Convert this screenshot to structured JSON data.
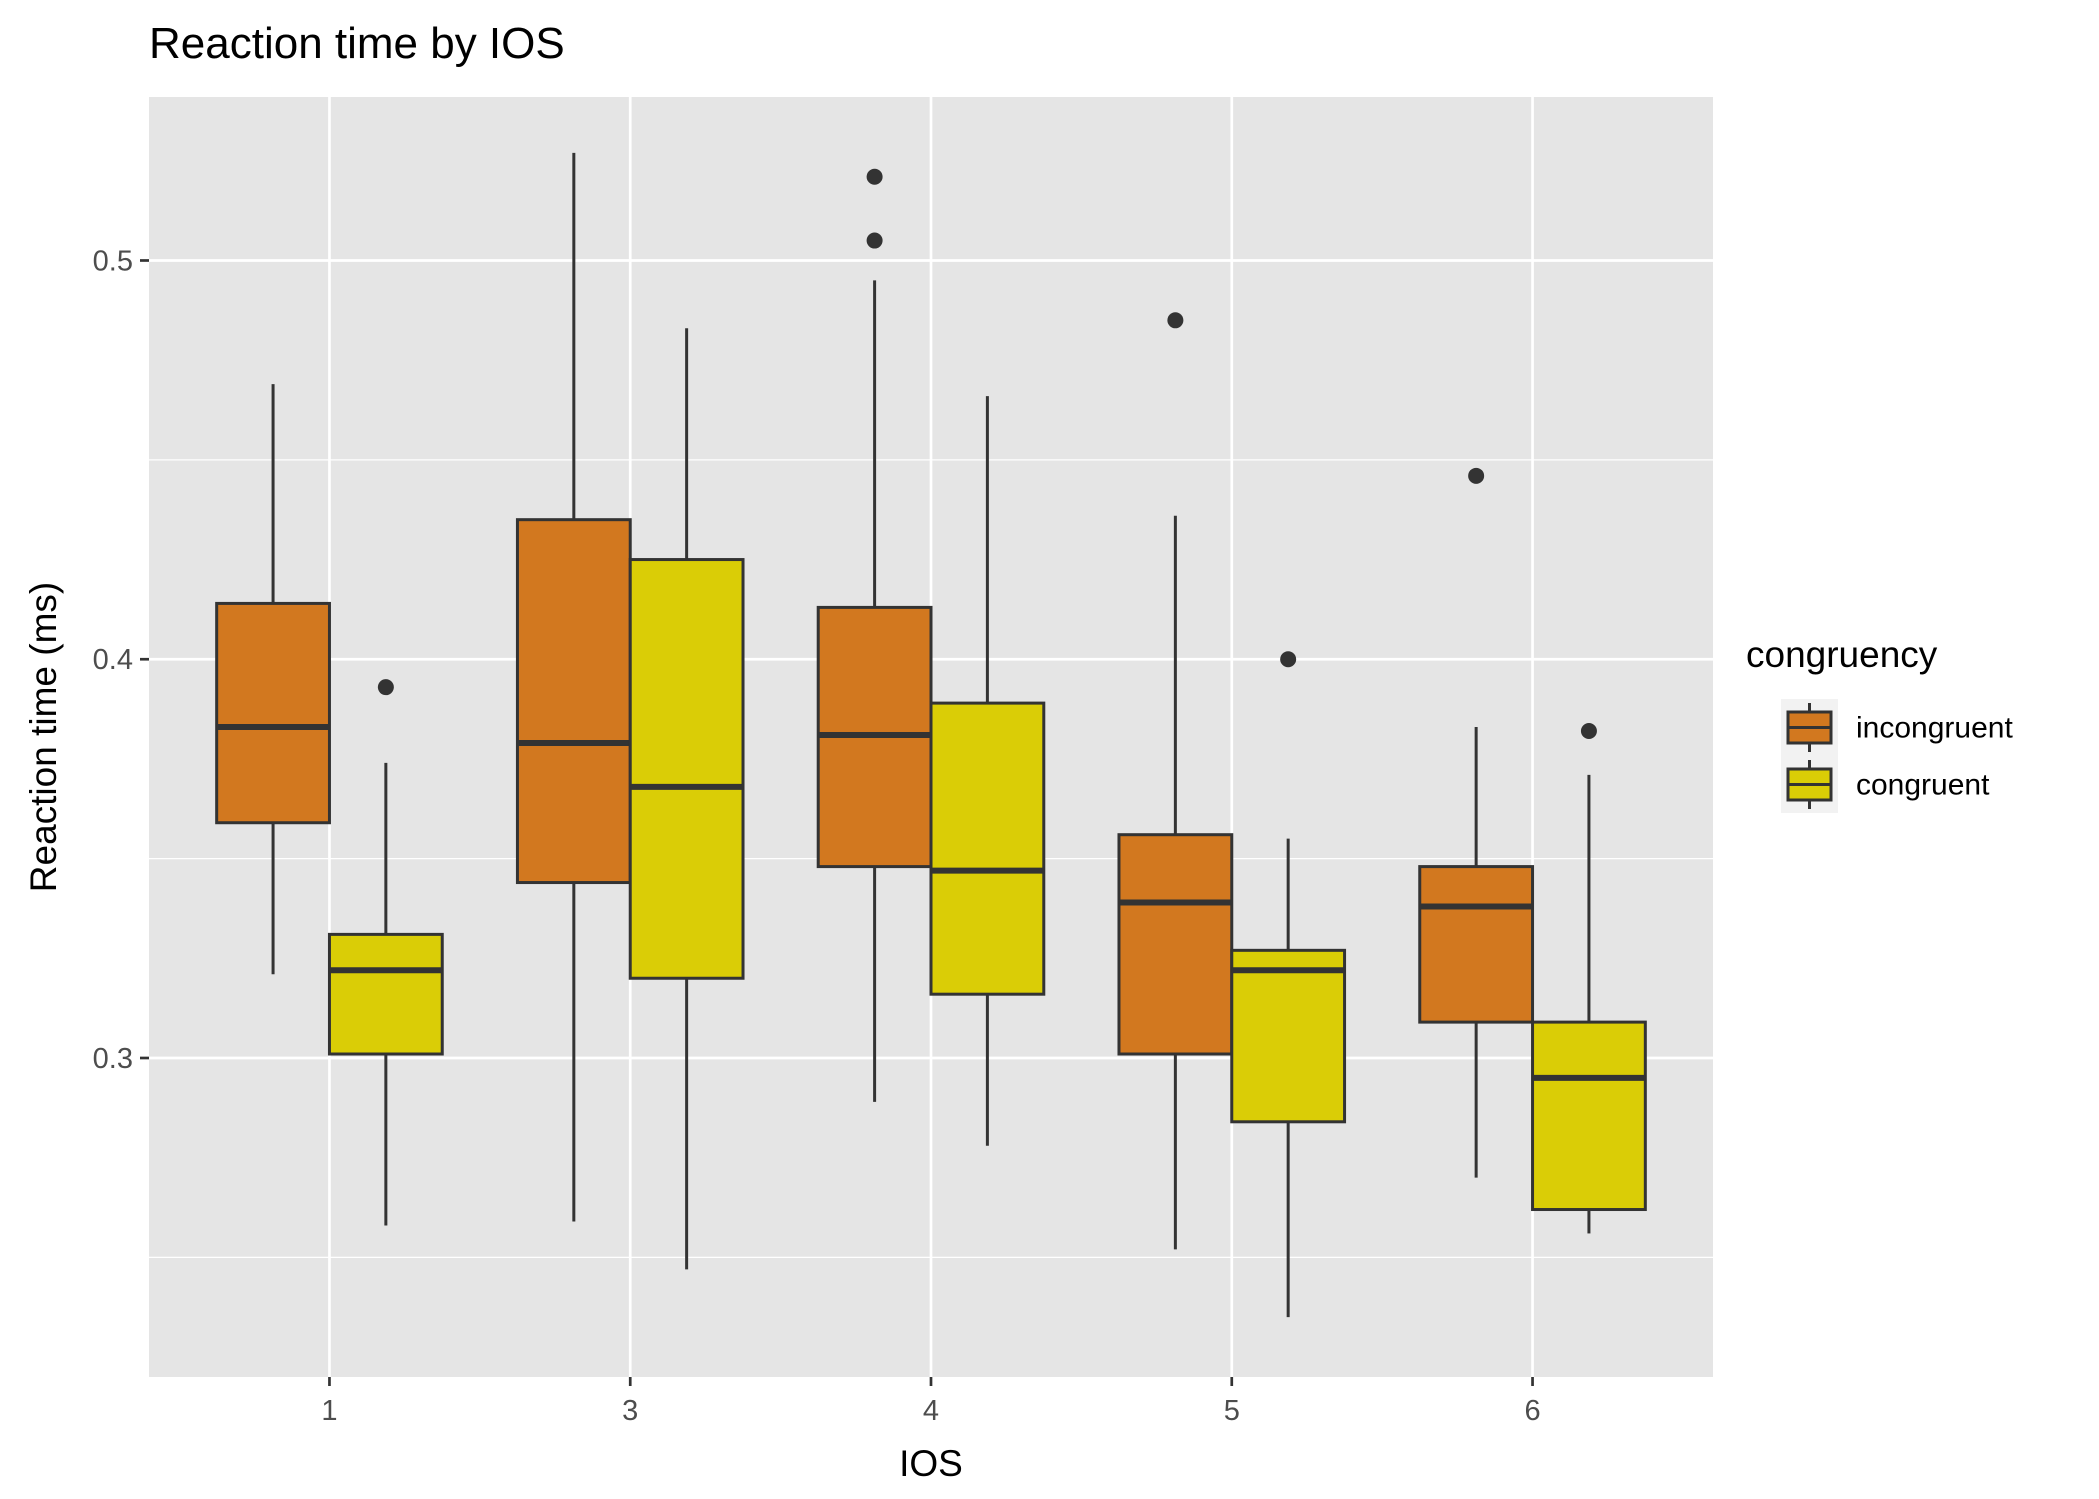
{
  "chart_data": {
    "type": "boxplot",
    "title": "Reaction time by IOS",
    "xlabel": "IOS",
    "ylabel": "Reaction time (ms)",
    "ylim": [
      0.22,
      0.541
    ],
    "y_ticks": [
      0.3,
      0.4,
      0.5
    ],
    "y_tick_labels": [
      "0.3",
      "0.4",
      "0.5"
    ],
    "categories": [
      "1",
      "3",
      "4",
      "5",
      "6"
    ],
    "grid": true,
    "legend": {
      "title": "congruency",
      "position": "right",
      "entries": [
        {
          "label": "incongruent",
          "color": "#D2781F"
        },
        {
          "label": "congruent",
          "color": "#DACD06"
        }
      ]
    },
    "series": [
      {
        "name": "incongruent",
        "color": "#D2781F",
        "boxes": [
          {
            "x": "1",
            "min": 0.321,
            "q1": 0.359,
            "median": 0.383,
            "q3": 0.414,
            "max": 0.469,
            "outliers": []
          },
          {
            "x": "3",
            "min": 0.259,
            "q1": 0.344,
            "median": 0.379,
            "q3": 0.435,
            "max": 0.527,
            "outliers": []
          },
          {
            "x": "4",
            "min": 0.289,
            "q1": 0.348,
            "median": 0.381,
            "q3": 0.413,
            "max": 0.495,
            "outliers": [
              0.505,
              0.521
            ]
          },
          {
            "x": "5",
            "min": 0.252,
            "q1": 0.301,
            "median": 0.339,
            "q3": 0.356,
            "max": 0.436,
            "outliers": [
              0.485
            ]
          },
          {
            "x": "6",
            "min": 0.27,
            "q1": 0.309,
            "median": 0.338,
            "q3": 0.348,
            "max": 0.383,
            "outliers": [
              0.446
            ]
          }
        ]
      },
      {
        "name": "congruent",
        "color": "#DACD06",
        "boxes": [
          {
            "x": "1",
            "min": 0.258,
            "q1": 0.301,
            "median": 0.322,
            "q3": 0.331,
            "max": 0.374,
            "outliers": [
              0.393
            ]
          },
          {
            "x": "3",
            "min": 0.247,
            "q1": 0.32,
            "median": 0.368,
            "q3": 0.425,
            "max": 0.483,
            "outliers": []
          },
          {
            "x": "4",
            "min": 0.278,
            "q1": 0.316,
            "median": 0.347,
            "q3": 0.389,
            "max": 0.466,
            "outliers": []
          },
          {
            "x": "5",
            "min": 0.235,
            "q1": 0.284,
            "median": 0.322,
            "q3": 0.327,
            "max": 0.355,
            "outliers": [
              0.4
            ]
          },
          {
            "x": "6",
            "min": 0.256,
            "q1": 0.262,
            "median": 0.295,
            "q3": 0.309,
            "max": 0.371,
            "outliers": [
              0.382
            ]
          }
        ]
      }
    ]
  }
}
